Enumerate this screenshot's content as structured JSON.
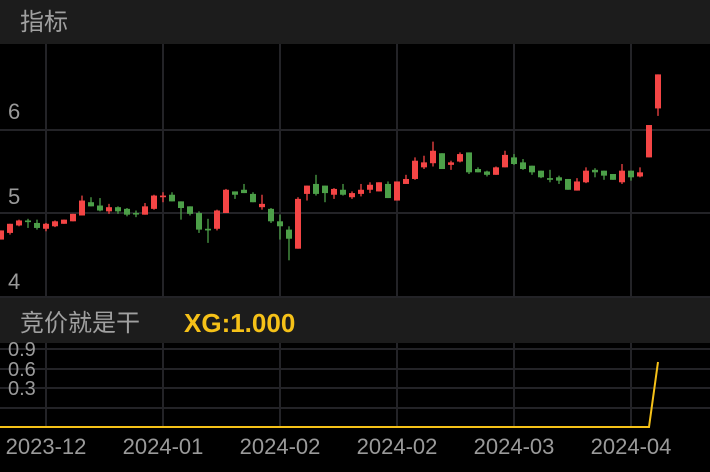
{
  "header": {
    "title": "指标"
  },
  "indicator": {
    "name": "竞价就是干",
    "value_label": "XG:1.000"
  },
  "colors": {
    "up": "#f44545",
    "down": "#4c9f48",
    "line": "#f5c118",
    "grid": "#232327"
  },
  "chart_data": [
    {
      "type": "candlestick",
      "y_ticks": [
        "6",
        "5",
        "4"
      ],
      "y_tick_values": [
        6,
        5,
        4
      ],
      "ylim": [
        3.97,
        6.97
      ],
      "grid": true,
      "x_tick_labels": [
        "2023-12",
        "2024-01",
        "2024-02",
        "2024-02",
        "2024-03",
        "2024-04"
      ],
      "x_tick_indices": [
        5,
        18,
        31,
        44,
        57,
        70
      ],
      "ohlc": [
        [
          4.68,
          4.79,
          4.68,
          4.79
        ],
        [
          4.76,
          4.87,
          4.74,
          4.87
        ],
        [
          4.85,
          4.92,
          4.84,
          4.91
        ],
        [
          4.91,
          4.93,
          4.82,
          4.89
        ],
        [
          4.88,
          4.92,
          4.8,
          4.82
        ],
        [
          4.81,
          4.88,
          4.78,
          4.87
        ],
        [
          4.84,
          4.91,
          4.83,
          4.9
        ],
        [
          4.87,
          4.92,
          4.87,
          4.92
        ],
        [
          4.9,
          4.99,
          4.9,
          4.99
        ],
        [
          4.97,
          5.21,
          4.97,
          5.15
        ],
        [
          5.13,
          5.19,
          5.08,
          5.08
        ],
        [
          5.09,
          5.18,
          5.02,
          5.03
        ],
        [
          5.02,
          5.11,
          4.99,
          5.07
        ],
        [
          5.07,
          5.08,
          4.99,
          5.02
        ],
        [
          5.05,
          5.06,
          4.96,
          4.98
        ],
        [
          5.0,
          5.03,
          4.95,
          4.99
        ],
        [
          4.98,
          5.12,
          4.98,
          5.08
        ],
        [
          5.05,
          5.22,
          5.04,
          5.21
        ],
        [
          5.19,
          5.25,
          5.13,
          5.21
        ],
        [
          5.22,
          5.25,
          5.14,
          5.14
        ],
        [
          5.14,
          5.14,
          4.92,
          5.06
        ],
        [
          5.08,
          5.08,
          4.97,
          4.99
        ],
        [
          5.0,
          5.02,
          4.76,
          4.8
        ],
        [
          4.81,
          4.93,
          4.64,
          4.79
        ],
        [
          4.81,
          5.04,
          4.79,
          5.03
        ],
        [
          5.0,
          5.29,
          5.0,
          5.28
        ],
        [
          5.26,
          5.26,
          5.17,
          5.22
        ],
        [
          5.28,
          5.35,
          5.24,
          5.24
        ],
        [
          5.23,
          5.25,
          5.13,
          5.13
        ],
        [
          5.07,
          5.22,
          5.04,
          5.11
        ],
        [
          5.05,
          5.06,
          4.88,
          4.9
        ],
        [
          4.9,
          4.98,
          4.68,
          4.84
        ],
        [
          4.8,
          4.84,
          4.43,
          4.69
        ],
        [
          4.57,
          5.19,
          4.57,
          5.17
        ],
        [
          5.23,
          5.33,
          5.15,
          5.33
        ],
        [
          5.35,
          5.46,
          5.21,
          5.23
        ],
        [
          5.33,
          5.33,
          5.13,
          5.24
        ],
        [
          5.22,
          5.3,
          5.17,
          5.29
        ],
        [
          5.28,
          5.35,
          5.21,
          5.22
        ],
        [
          5.19,
          5.26,
          5.17,
          5.24
        ],
        [
          5.23,
          5.35,
          5.2,
          5.28
        ],
        [
          5.28,
          5.37,
          5.24,
          5.34
        ],
        [
          5.26,
          5.37,
          5.26,
          5.37
        ],
        [
          5.35,
          5.38,
          5.18,
          5.18
        ],
        [
          5.15,
          5.38,
          5.15,
          5.38
        ],
        [
          5.35,
          5.46,
          5.35,
          5.41
        ],
        [
          5.41,
          5.67,
          5.4,
          5.63
        ],
        [
          5.55,
          5.69,
          5.53,
          5.61
        ],
        [
          5.6,
          5.86,
          5.56,
          5.75
        ],
        [
          5.72,
          5.72,
          5.53,
          5.53
        ],
        [
          5.58,
          5.63,
          5.52,
          5.61
        ],
        [
          5.62,
          5.73,
          5.61,
          5.71
        ],
        [
          5.73,
          5.73,
          5.47,
          5.49
        ],
        [
          5.53,
          5.55,
          5.49,
          5.49
        ],
        [
          5.5,
          5.51,
          5.44,
          5.46
        ],
        [
          5.46,
          5.56,
          5.46,
          5.55
        ],
        [
          5.55,
          5.75,
          5.55,
          5.7
        ],
        [
          5.67,
          5.71,
          5.58,
          5.59
        ],
        [
          5.61,
          5.65,
          5.52,
          5.53
        ],
        [
          5.57,
          5.57,
          5.46,
          5.49
        ],
        [
          5.51,
          5.51,
          5.42,
          5.43
        ],
        [
          5.42,
          5.52,
          5.37,
          5.4
        ],
        [
          5.43,
          5.45,
          5.35,
          5.39
        ],
        [
          5.41,
          5.41,
          5.28,
          5.28
        ],
        [
          5.27,
          5.42,
          5.27,
          5.38
        ],
        [
          5.37,
          5.55,
          5.36,
          5.51
        ],
        [
          5.52,
          5.54,
          5.43,
          5.49
        ],
        [
          5.51,
          5.51,
          5.4,
          5.45
        ],
        [
          5.47,
          5.47,
          5.4,
          5.4
        ],
        [
          5.37,
          5.59,
          5.35,
          5.51
        ],
        [
          5.51,
          5.51,
          5.39,
          5.43
        ],
        [
          5.44,
          5.55,
          5.43,
          5.49
        ],
        [
          5.67,
          6.06,
          5.67,
          6.06
        ],
        [
          6.26,
          6.67,
          6.17,
          6.67
        ]
      ]
    },
    {
      "type": "line",
      "y_ticks": [
        "0.9",
        "0.6",
        "0.3"
      ],
      "values": [
        0,
        0,
        0,
        0,
        0,
        0,
        0,
        0,
        0,
        0,
        0,
        0,
        0,
        0,
        0,
        0,
        0,
        0,
        0,
        0,
        0,
        0,
        0,
        0,
        0,
        0,
        0,
        0,
        0,
        0,
        0,
        0,
        0,
        0,
        0,
        0,
        0,
        0,
        0,
        0,
        0,
        0,
        0,
        0,
        0,
        0,
        0,
        0,
        0,
        0,
        0,
        0,
        0,
        0,
        0,
        0,
        0,
        0,
        0,
        0,
        0,
        0,
        0,
        0,
        0,
        0,
        0,
        0,
        0,
        0,
        0,
        0,
        0,
        1
      ]
    }
  ]
}
